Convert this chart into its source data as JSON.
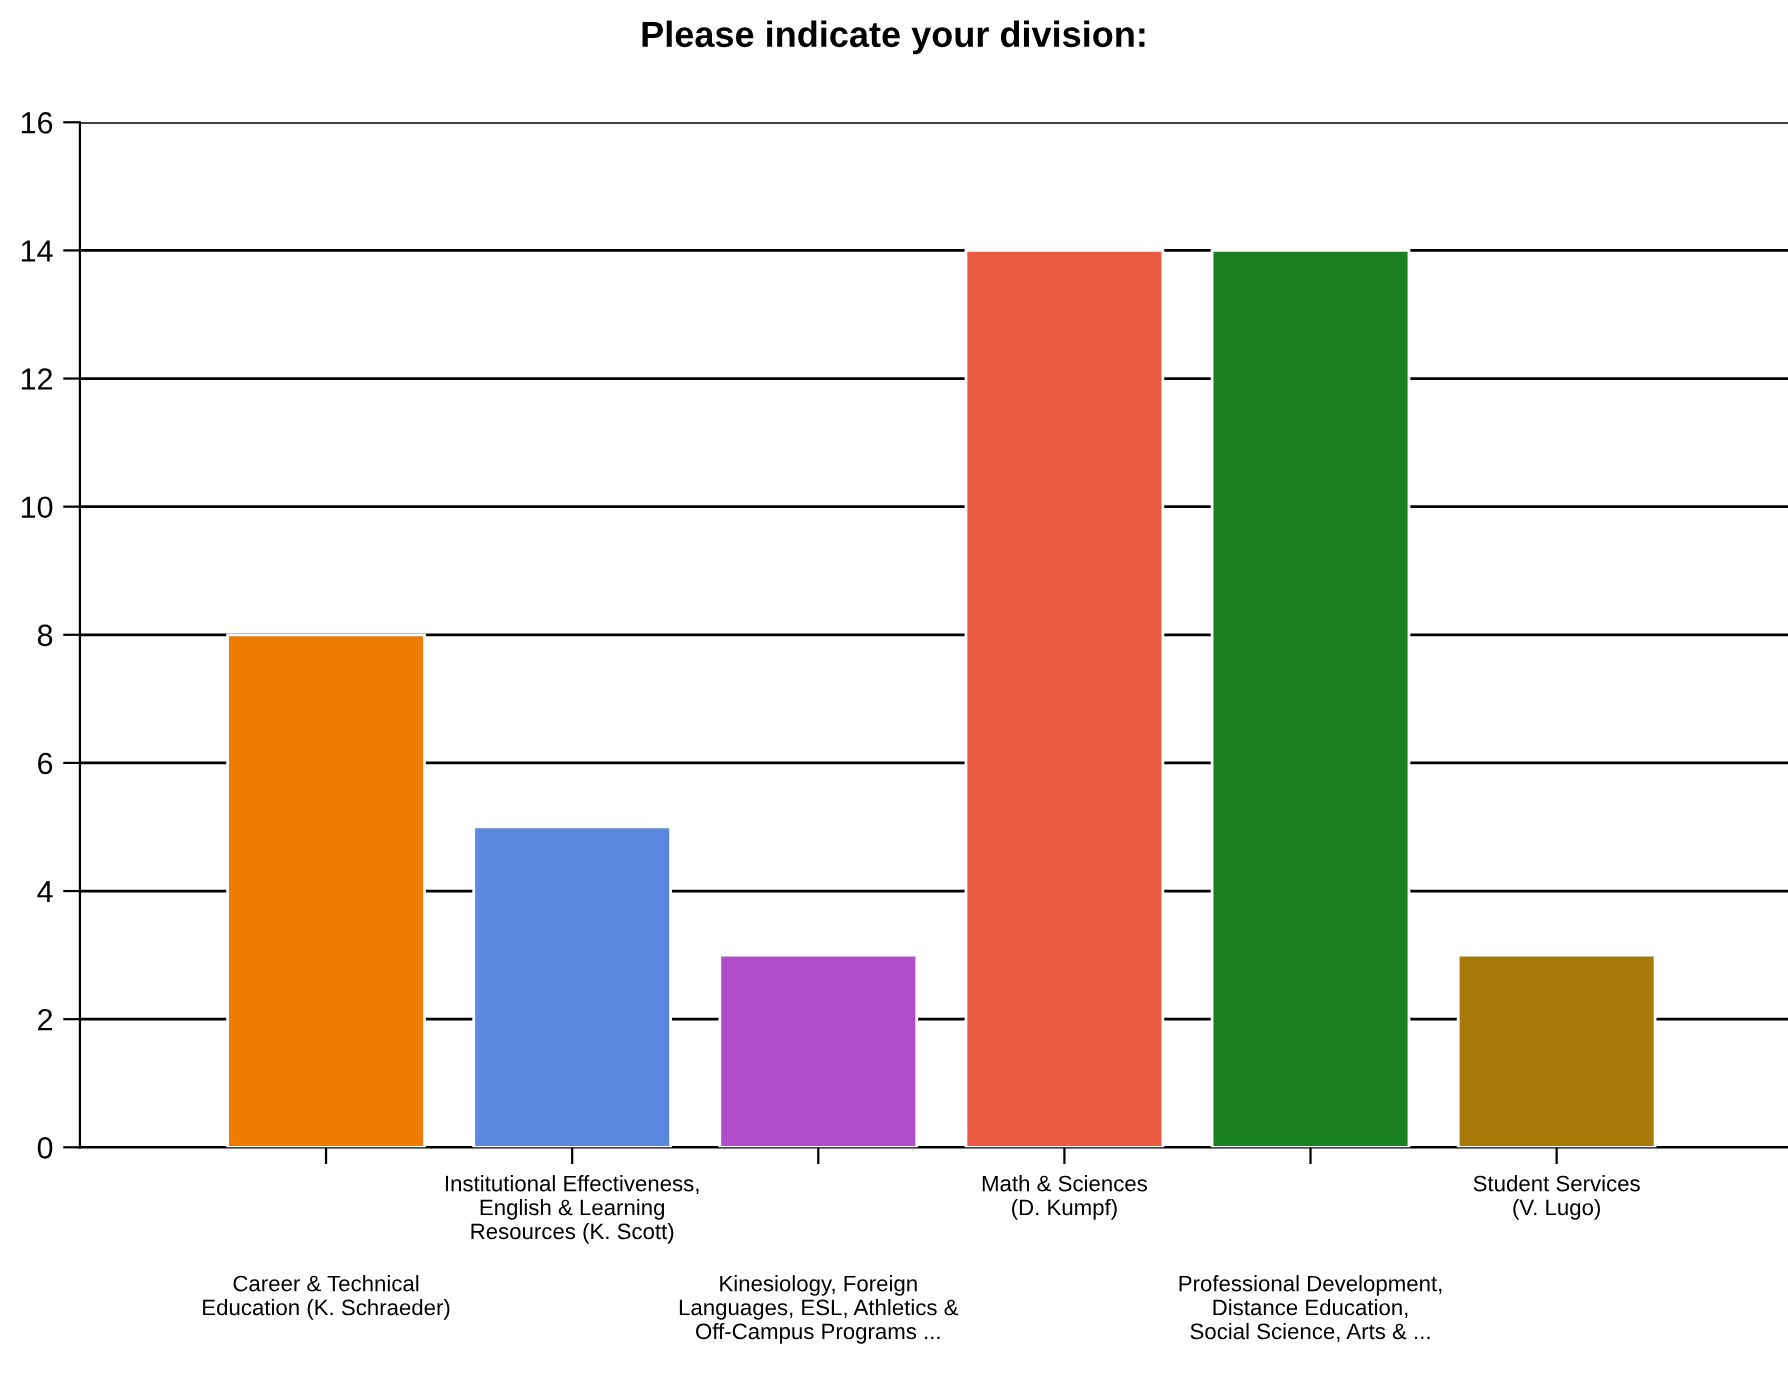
{
  "chart_data": {
    "type": "bar",
    "title": "Please indicate your division:",
    "categories": [
      "Career & Technical\nEducation (K. Schraeder)",
      "Institutional Effectiveness,\nEnglish & Learning\nResources (K. Scott)",
      "Kinesiology, Foreign\nLanguages, ESL, Athletics &\nOff-Campus Programs ...",
      "Math & Sciences\n(D. Kumpf)",
      "Professional Development,\nDistance Education,\nSocial Science, Arts & ...",
      "Student Services\n(V. Lugo)"
    ],
    "values": [
      8,
      5,
      3,
      14,
      14,
      3
    ],
    "colors": [
      "#ee7c00",
      "#5a88de",
      "#b04cc8",
      "#ea5a40",
      "#1a8020",
      "#a87808"
    ],
    "ylim": [
      0,
      16
    ],
    "yticks": [
      0,
      2,
      4,
      6,
      8,
      10,
      12,
      14,
      16
    ],
    "grid": "y",
    "legend": false
  }
}
